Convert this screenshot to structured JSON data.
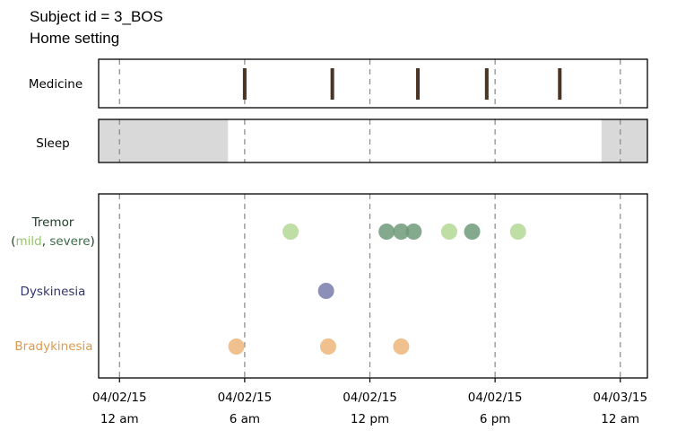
{
  "title_lines": [
    "Subject id = 3_BOS",
    "Home setting"
  ],
  "colors": {
    "medicine": "#4a3424",
    "sleep": "#d9d9d9",
    "tremor_mild": "#bfdea5",
    "tremor_severe": "#6f9a79",
    "dyskinesia": "#8c90b8",
    "bradykinesia": "#f0c18e",
    "dyskinesia_label": "#30366e",
    "bradykinesia_label": "#dd9a4e",
    "tremor_label": "#1f3c26",
    "mild_label": "#97c26f",
    "severe_label": "#3c6b48",
    "grid": "#888888"
  },
  "chart_data": {
    "type": "scatter",
    "x_unit": "hours since 04/02/15 12 am",
    "xlim": [
      -1,
      25.3
    ],
    "x_ticks": [
      {
        "value": 0,
        "date": "04/02/15",
        "time": "12 am"
      },
      {
        "value": 6,
        "date": "04/02/15",
        "time": "6 am"
      },
      {
        "value": 12,
        "date": "04/02/15",
        "time": "12 pm"
      },
      {
        "value": 18,
        "date": "04/02/15",
        "time": "6 pm"
      },
      {
        "value": 24,
        "date": "04/03/15",
        "time": "12 am"
      }
    ],
    "grid": "vertical dashed at ticks",
    "panels": {
      "medicine": {
        "label": "Medicine",
        "doses": [
          6.0,
          10.2,
          14.3,
          17.6,
          21.1
        ]
      },
      "sleep": {
        "label": "Sleep",
        "intervals": [
          [
            -1,
            5.2
          ],
          [
            23.1,
            25.3
          ]
        ]
      },
      "symptoms": {
        "tremor": {
          "label": "Tremor",
          "sublabel_open": "(",
          "mild_word": "mild",
          "separator": ", ",
          "severe_word": "severe",
          "sublabel_close": ")",
          "mild": [
            8.2,
            15.8,
            19.1
          ],
          "severe": [
            12.8,
            13.5,
            14.1,
            16.9
          ]
        },
        "dyskinesia": {
          "label": "Dyskinesia",
          "points": [
            9.9
          ]
        },
        "bradykinesia": {
          "label": "Bradykinesia",
          "points": [
            5.6,
            10.0,
            13.5
          ]
        }
      }
    }
  }
}
